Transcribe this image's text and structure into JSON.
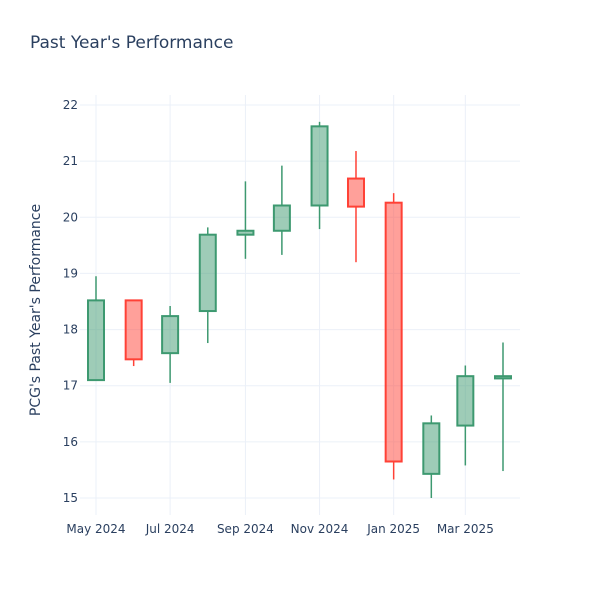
{
  "chart_data": {
    "type": "candlestick",
    "title": "Past Year's Performance",
    "ylabel": "PCG's Past Year's Performance",
    "xlabel": "",
    "ylim": [
      14.7,
      22.1
    ],
    "y_ticks": [
      15,
      16,
      17,
      18,
      19,
      20,
      21,
      22
    ],
    "x_ticks": [
      {
        "label": "May 2024",
        "date": "2024-05-01"
      },
      {
        "label": "Jul 2024",
        "date": "2024-07-01"
      },
      {
        "label": "Sep 2024",
        "date": "2024-09-01"
      },
      {
        "label": "Nov 2024",
        "date": "2024-11-01"
      },
      {
        "label": "Jan 2025",
        "date": "2025-01-01"
      },
      {
        "label": "Mar 2025",
        "date": "2025-03-01"
      }
    ],
    "increasing_color": "#3D9970",
    "decreasing_color": "#FF4136",
    "grid": true,
    "candles": [
      {
        "date": "2024-05-01",
        "open": 17.1,
        "high": 18.95,
        "low": 17.1,
        "close": 18.52
      },
      {
        "date": "2024-06-01",
        "open": 18.52,
        "high": 18.52,
        "low": 17.35,
        "close": 17.47
      },
      {
        "date": "2024-07-01",
        "open": 17.58,
        "high": 18.42,
        "low": 17.05,
        "close": 18.24
      },
      {
        "date": "2024-08-01",
        "open": 18.33,
        "high": 19.82,
        "low": 17.76,
        "close": 19.69
      },
      {
        "date": "2024-09-01",
        "open": 19.69,
        "high": 20.64,
        "low": 19.26,
        "close": 19.76
      },
      {
        "date": "2024-10-01",
        "open": 19.76,
        "high": 20.92,
        "low": 19.33,
        "close": 20.21
      },
      {
        "date": "2024-11-01",
        "open": 20.21,
        "high": 21.7,
        "low": 19.79,
        "close": 21.62
      },
      {
        "date": "2024-12-01",
        "open": 20.69,
        "high": 21.18,
        "low": 19.2,
        "close": 20.19
      },
      {
        "date": "2025-01-01",
        "open": 20.26,
        "high": 20.43,
        "low": 15.33,
        "close": 15.65
      },
      {
        "date": "2025-02-01",
        "open": 15.43,
        "high": 16.47,
        "low": 15.0,
        "close": 16.33
      },
      {
        "date": "2025-03-01",
        "open": 16.29,
        "high": 17.36,
        "low": 15.58,
        "close": 17.17
      },
      {
        "date": "2025-04-01",
        "open": 17.13,
        "high": 17.77,
        "low": 15.48,
        "close": 17.17
      }
    ]
  }
}
